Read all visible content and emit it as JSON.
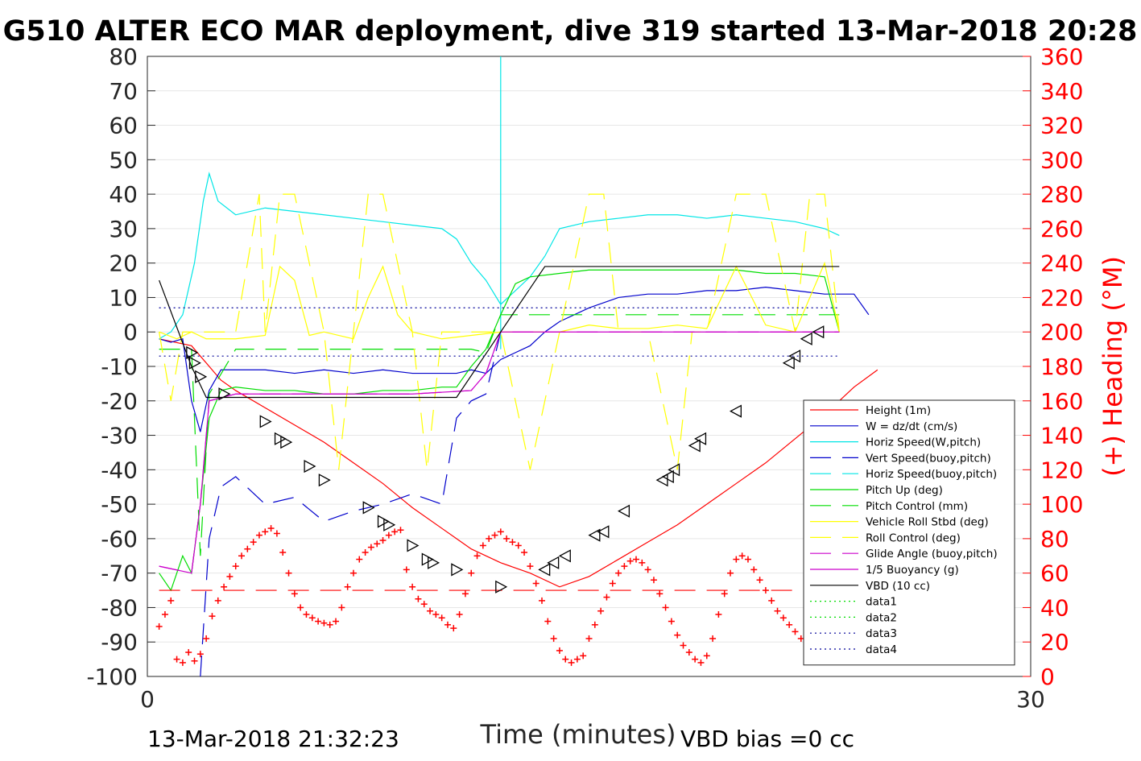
{
  "chart_data": {
    "type": "line",
    "title": "G510 ALTER ECO MAR deployment, dive 319 started 13-Mar-2018 20:28",
    "xlabel": "Time (minutes)",
    "ylabel_right": "(+) Heading (°M)",
    "footer_left": "13-Mar-2018 21:32:23",
    "footer_right": "VBD bias =0 cc",
    "xlim": [
      0,
      30
    ],
    "ylim": [
      -100,
      80
    ],
    "y2lim": [
      0,
      360
    ],
    "x_ticks": [
      "0",
      "30"
    ],
    "y_ticks": [
      "80",
      "70",
      "60",
      "50",
      "40",
      "30",
      "20",
      "10",
      "0",
      "-10",
      "-20",
      "-30",
      "-40",
      "-50",
      "-60",
      "-70",
      "-80",
      "-90",
      "-100"
    ],
    "y2_ticks": [
      "360",
      "340",
      "320",
      "300",
      "280",
      "260",
      "240",
      "220",
      "200",
      "180",
      "160",
      "140",
      "120",
      "100",
      "80",
      "60",
      "40",
      "20",
      "0"
    ],
    "grid": "horizontal",
    "legend_position": "bottom-right",
    "colors": {
      "red": "#ff0000",
      "blue": "#0000cc",
      "cyan": "#00e6e6",
      "green": "#00dd00",
      "yellow": "#ffff00",
      "magenta": "#cc00cc",
      "black": "#000000",
      "navy": "#000099"
    },
    "series": [
      {
        "name": "Height (1m)",
        "color": "#ff0000",
        "style": "solid",
        "axis": "left",
        "x": [
          0.4,
          1.5,
          2.1,
          2.5,
          3.0,
          4.0,
          5.0,
          6.0,
          7.0,
          8.0,
          9.0,
          10.0,
          10.5,
          11.0,
          12.0,
          13.0,
          14.0,
          15.0,
          16.0,
          17.0,
          18.0,
          19.0,
          20.0,
          21.0,
          22.0,
          23.0,
          24.0,
          24.8
        ],
        "y": [
          -2,
          -4,
          -10,
          -14,
          -17,
          -22,
          -27,
          -32,
          -38,
          -44,
          -51,
          -57,
          -60,
          -63,
          -67,
          -70,
          -74,
          -71,
          -66,
          -61,
          -56,
          -50,
          -44,
          -38,
          -31,
          -24,
          -16,
          -11
        ]
      },
      {
        "name": "W = dz/dt (cm/s)",
        "color": "#0000cc",
        "style": "solid",
        "axis": "left",
        "x": [
          0.4,
          0.8,
          1.2,
          1.5,
          1.8,
          2.1,
          2.5,
          3.0,
          4.0,
          5.0,
          6.0,
          7.0,
          8.0,
          9.0,
          10.0,
          10.5,
          11.0,
          11.5,
          12.0,
          12.5,
          13.0,
          13.5,
          14.0,
          15.0,
          16.0,
          17.0,
          18.0,
          19.0,
          20.0,
          21.0,
          22.0,
          23.0,
          24.0,
          24.5
        ],
        "y": [
          -2,
          -3,
          -2,
          -20,
          -29,
          -17,
          -11,
          -11,
          -11,
          -12,
          -11,
          -12,
          -11,
          -12,
          -12,
          -12,
          -11,
          -12,
          -8,
          -6,
          -4,
          0,
          3,
          7,
          10,
          11,
          11,
          12,
          12,
          13,
          12,
          11,
          11,
          5
        ]
      },
      {
        "name": "Horiz Speed(W,pitch)",
        "color": "#00e6e6",
        "style": "solid",
        "axis": "left",
        "x": [
          0.4,
          0.8,
          1.2,
          1.6,
          1.9,
          2.1,
          2.4,
          3.0,
          4.0,
          5.0,
          6.0,
          7.0,
          8.0,
          9.0,
          10.0,
          10.5,
          11.0,
          11.5,
          12.0,
          12.5,
          13.0,
          13.5,
          14.0,
          15.0,
          16.0,
          17.0,
          18.0,
          19.0,
          20.0,
          21.0,
          22.0,
          23.0,
          23.5
        ],
        "y": [
          -2,
          0,
          5,
          20,
          38,
          46,
          38,
          34,
          36,
          35,
          34,
          33,
          32,
          31,
          30,
          27,
          20,
          15,
          8,
          12,
          16,
          22,
          30,
          32,
          33,
          34,
          34,
          33,
          34,
          33,
          32,
          30,
          28
        ]
      },
      {
        "name": "Vert Speed(buoy,pitch)",
        "color": "#0000cc",
        "style": "dashed",
        "axis": "left",
        "x": [
          1.8,
          2.1,
          2.5,
          3.0,
          4.0,
          5.0,
          6.0,
          7.0,
          8.0,
          9.0,
          10.0,
          10.5,
          11.0,
          11.5,
          12.0
        ],
        "y": [
          -100,
          -60,
          -45,
          -42,
          -50,
          -48,
          -55,
          -52,
          -50,
          -47,
          -50,
          -25,
          -20,
          -18,
          0
        ]
      },
      {
        "name": "Horiz Speed(buoy,pitch)",
        "color": "#00e6e6",
        "style": "dashed",
        "axis": "left",
        "x": [
          12.0,
          12.0,
          12.0
        ],
        "y": [
          -5,
          80,
          0
        ]
      },
      {
        "name": "Pitch Up (deg)",
        "color": "#00dd00",
        "style": "solid",
        "axis": "left",
        "x": [
          0.4,
          0.8,
          1.2,
          1.5,
          1.8,
          2.1,
          2.5,
          3.0,
          4.0,
          5.0,
          6.0,
          7.0,
          8.0,
          9.0,
          10.0,
          10.5,
          11.0,
          11.5,
          12.0,
          12.5,
          13.0,
          14.0,
          15.0,
          16.0,
          17.0,
          18.0,
          19.0,
          20.0,
          21.0,
          22.0,
          23.0,
          23.5
        ],
        "y": [
          -70,
          -75,
          -65,
          -70,
          -50,
          -25,
          -17,
          -16,
          -17,
          -17,
          -18,
          -18,
          -17,
          -17,
          -16,
          -16,
          -10,
          -5,
          5,
          14,
          16,
          17,
          18,
          18,
          18,
          18,
          18,
          18,
          17,
          17,
          16,
          0
        ]
      },
      {
        "name": "Pitch Control (mm)",
        "color": "#00dd00",
        "style": "dashed",
        "axis": "left",
        "x": [
          0.4,
          1.5,
          1.8,
          2.1,
          3.0,
          6.0,
          9.0,
          11.0,
          11.5,
          12.0,
          13.0,
          18.0,
          23.5
        ],
        "y": [
          -5,
          -5,
          -65,
          -18,
          -5,
          -5,
          -5,
          -5,
          -6,
          5,
          5,
          5,
          5
        ]
      },
      {
        "name": "Vehicle Roll Stbd (deg)",
        "color": "#ffff00",
        "style": "solid",
        "axis": "left",
        "x": [
          0.4,
          1.0,
          1.5,
          2.0,
          3.0,
          4.0,
          4.5,
          5.0,
          5.5,
          6.0,
          7.0,
          7.5,
          8.0,
          8.5,
          9.0,
          10.0,
          11.0,
          12.0,
          13.0,
          14.0,
          15.0,
          16.0,
          17.0,
          18.0,
          19.0,
          20.0,
          21.0,
          22.0,
          23.0,
          23.5
        ],
        "y": [
          0,
          -2,
          0,
          -2,
          -2,
          -1,
          19,
          15,
          -1,
          0,
          -2,
          10,
          19,
          5,
          0,
          -2,
          -1,
          0,
          0,
          0,
          2,
          1,
          1,
          2,
          1,
          19,
          2,
          0,
          20,
          0
        ]
      },
      {
        "name": "Roll Control (deg)",
        "color": "#ffff00",
        "style": "dashed",
        "axis": "left",
        "x": [
          0.4,
          0.8,
          1.2,
          3.0,
          3.8,
          4.0,
          4.5,
          5.0,
          6.0,
          6.5,
          7.0,
          7.5,
          8.0,
          9.0,
          9.5,
          10.0,
          11.0,
          12.0,
          13.0,
          14.0,
          15.0,
          15.5,
          16.0,
          17.0,
          18.0,
          18.5,
          19.0,
          20.0,
          21.0,
          22.0,
          22.5,
          23.0,
          23.5
        ],
        "y": [
          0,
          -20,
          0,
          0,
          40,
          0,
          40,
          40,
          0,
          -40,
          0,
          40,
          40,
          0,
          -40,
          0,
          0,
          0,
          -40,
          0,
          40,
          40,
          0,
          0,
          -40,
          0,
          0,
          40,
          40,
          0,
          40,
          40,
          0
        ]
      },
      {
        "name": "Glide Angle (buoy,pitch)",
        "color": "#cc00cc",
        "style": "dashed",
        "axis": "left",
        "x": [
          0.4,
          1.5,
          1.8,
          2.1,
          3.0,
          6.0,
          9.0,
          11.0,
          11.5,
          12.0,
          13.0,
          18.0,
          23.5
        ],
        "y": [
          -68,
          -70,
          -50,
          -20,
          -18,
          -18,
          -18,
          -17,
          -12,
          0,
          0,
          0,
          0
        ]
      },
      {
        "name": "1/5 Buoyancy (g)",
        "color": "#cc00cc",
        "style": "solid",
        "axis": "left",
        "x": [
          0.4,
          1.5,
          1.8,
          2.1,
          3.0,
          6.0,
          9.0,
          11.0,
          11.5,
          12.0,
          13.0,
          18.0,
          23.5
        ],
        "y": [
          -68,
          -70,
          -50,
          -20,
          -18,
          -18,
          -18,
          -17,
          -12,
          0,
          0,
          0,
          0
        ]
      },
      {
        "name": "VBD (10 cc)",
        "color": "#000000",
        "style": "solid",
        "axis": "left",
        "x": [
          0.4,
          1.5,
          2.0,
          3.0,
          6.0,
          9.0,
          10.5,
          12.0,
          13.5,
          15.0,
          18.0,
          21.0,
          23.5
        ],
        "y": [
          15,
          -10,
          -19,
          -19,
          -19,
          -19,
          -19,
          0,
          19,
          19,
          19,
          19,
          19
        ]
      },
      {
        "name": "data1",
        "color": "#00dd00",
        "style": "dotted",
        "axis": "left",
        "x": [],
        "y": []
      },
      {
        "name": "data2",
        "color": "#00dd00",
        "style": "dotted",
        "axis": "left",
        "x": [],
        "y": []
      },
      {
        "name": "data3",
        "color": "#000099",
        "style": "dotted",
        "axis": "left",
        "x": [
          0.4,
          23.5
        ],
        "y": [
          7,
          7
        ]
      },
      {
        "name": "data4",
        "color": "#000099",
        "style": "dotted",
        "axis": "left",
        "x": [
          0.4,
          23.5
        ],
        "y": [
          -7,
          -7
        ]
      }
    ],
    "heading_reference": {
      "color": "#ff0000",
      "style": "dashed",
      "axis": "right",
      "x": [
        0.4,
        23.5
      ],
      "y": [
        50,
        50
      ]
    },
    "heading_markers": {
      "color": "#ff0000",
      "marker": "+",
      "axis": "right",
      "x": [
        0.4,
        0.6,
        0.8,
        1.0,
        1.2,
        1.4,
        1.6,
        1.8,
        2.0,
        2.2,
        2.4,
        2.6,
        2.8,
        3.0,
        3.2,
        3.4,
        3.6,
        3.8,
        4.0,
        4.2,
        4.4,
        4.6,
        4.8,
        5.0,
        5.2,
        5.4,
        5.6,
        5.8,
        6.0,
        6.2,
        6.4,
        6.6,
        6.8,
        7.0,
        7.2,
        7.4,
        7.6,
        7.8,
        8.0,
        8.2,
        8.4,
        8.6,
        8.8,
        9.0,
        9.2,
        9.4,
        9.6,
        9.8,
        10.0,
        10.2,
        10.4,
        10.6,
        10.8,
        11.0,
        11.2,
        11.4,
        11.6,
        11.8,
        12.0,
        12.2,
        12.4,
        12.6,
        12.8,
        13.0,
        13.2,
        13.4,
        13.6,
        13.8,
        14.0,
        14.2,
        14.4,
        14.6,
        14.8,
        15.0,
        15.2,
        15.4,
        15.6,
        15.8,
        16.0,
        16.2,
        16.4,
        16.6,
        16.8,
        17.0,
        17.2,
        17.4,
        17.6,
        17.8,
        18.0,
        18.2,
        18.4,
        18.6,
        18.8,
        19.0,
        19.2,
        19.4,
        19.6,
        19.8,
        20.0,
        20.2,
        20.4,
        20.6,
        20.8,
        21.0,
        21.2,
        21.4,
        21.6,
        21.8,
        22.0,
        22.2,
        22.4,
        22.6
      ],
      "y": [
        29,
        36,
        44,
        10,
        8,
        14,
        9,
        13,
        22,
        35,
        44,
        52,
        58,
        64,
        70,
        74,
        78,
        82,
        84,
        86,
        83,
        72,
        60,
        48,
        40,
        36,
        34,
        32,
        31,
        30,
        32,
        40,
        52,
        60,
        68,
        72,
        75,
        77,
        79,
        82,
        84,
        85,
        62,
        52,
        45,
        42,
        38,
        36,
        34,
        30,
        28,
        36,
        48,
        60,
        70,
        76,
        80,
        82,
        84,
        80,
        78,
        76,
        72,
        64,
        54,
        44,
        32,
        22,
        15,
        10,
        8,
        10,
        12,
        22,
        30,
        38,
        46,
        54,
        60,
        64,
        67,
        68,
        66,
        62,
        56,
        48,
        40,
        32,
        24,
        18,
        14,
        10,
        8,
        12,
        22,
        36,
        48,
        60,
        68,
        70,
        68,
        62,
        56,
        50,
        44,
        38,
        34,
        30,
        26,
        22,
        28,
        32
      ]
    },
    "height_triangles": {
      "color": "#000000",
      "marker": "triangle",
      "axis": "left",
      "x": [
        1.5,
        1.6,
        1.8,
        2.6,
        4.0,
        4.5,
        4.7,
        5.5,
        6.0,
        7.5,
        8.0,
        8.2,
        9.0,
        9.5,
        9.7,
        10.5,
        12.0,
        13.5,
        13.8,
        14.2,
        15.2,
        15.5,
        16.2,
        17.5,
        17.7,
        17.9,
        18.6,
        18.8,
        20.0,
        21.8,
        22.0,
        22.4,
        22.8
      ],
      "y": [
        -6,
        -9,
        -13,
        -18,
        -26,
        -31,
        -32,
        -39,
        -43,
        -51,
        -55,
        -56,
        -62,
        -66,
        -67,
        -69,
        -74,
        -69,
        -67,
        -65,
        -59,
        -58,
        -52,
        -43,
        -42,
        -40,
        -33,
        -31,
        -23,
        -9,
        -7,
        -2,
        0
      ]
    }
  }
}
